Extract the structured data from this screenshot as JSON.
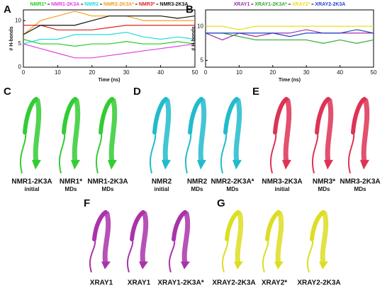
{
  "chart_data": [
    {
      "type": "line",
      "label": "A",
      "xlabel": "Time (ns)",
      "ylabel": "# H-bonds",
      "x": [
        0,
        5,
        10,
        15,
        20,
        25,
        30,
        35,
        40,
        45,
        50
      ],
      "xlim": [
        0,
        50
      ],
      "xticks": [
        0,
        10,
        20,
        30,
        40,
        50
      ],
      "ylim": [
        0,
        12.3
      ],
      "yticks": [
        0,
        5,
        10
      ],
      "series": [
        {
          "name": "NMR1*",
          "color": "#22cc22",
          "values": [
            6,
            5,
            5,
            4.5,
            5,
            5,
            5.5,
            5,
            5,
            5.5,
            5
          ]
        },
        {
          "name": "NMR1-2K3A",
          "color": "#e040e0",
          "values": [
            5,
            4,
            3,
            2,
            2,
            2.5,
            3,
            3.5,
            4,
            4.5,
            5
          ]
        },
        {
          "name": "NMR2",
          "color": "#22dddd",
          "values": [
            5,
            6,
            6,
            7,
            7,
            7,
            7.5,
            6.5,
            6,
            6.5,
            6
          ]
        },
        {
          "name": "NMR2-2K3A*",
          "color": "#f0a020",
          "values": [
            7,
            10,
            11,
            12,
            11,
            11,
            11,
            10,
            10,
            10,
            10
          ]
        },
        {
          "name": "NMR3*",
          "color": "#dd2222",
          "values": [
            9,
            9,
            8,
            8,
            8,
            8.5,
            9,
            9,
            9,
            9,
            9
          ]
        },
        {
          "name": "NMR3-2K3A",
          "color": "#111111",
          "values": [
            7,
            9,
            9,
            9,
            10,
            11,
            11,
            11,
            11,
            10.5,
            11
          ]
        }
      ]
    },
    {
      "type": "line",
      "label": "B",
      "xlabel": "Time (ns)",
      "ylabel": "# H-bonds",
      "x": [
        0,
        5,
        10,
        15,
        20,
        25,
        30,
        35,
        40,
        45,
        50
      ],
      "xlim": [
        0,
        50
      ],
      "xticks": [
        0,
        10,
        20,
        30,
        40,
        50
      ],
      "ylim": [
        4,
        12.4
      ],
      "yticks": [
        5,
        10
      ],
      "series": [
        {
          "name": "XRAY1",
          "color": "#9933aa",
          "values": [
            9,
            8,
            9,
            8.5,
            9,
            9,
            9.5,
            9,
            9,
            9,
            9
          ]
        },
        {
          "name": "XRAY1-2K3A*",
          "color": "#33aa33",
          "values": [
            9,
            9,
            8.5,
            8,
            8,
            8,
            8,
            7.5,
            8,
            7.5,
            8
          ]
        },
        {
          "name": "XRAY2*",
          "color": "#eedd22",
          "values": [
            10,
            10,
            9.5,
            10,
            10,
            10,
            10,
            10,
            10,
            10,
            10
          ]
        },
        {
          "name": "XRAY2-2K3A",
          "color": "#2244cc",
          "values": [
            9,
            9,
            9,
            9,
            9,
            8.5,
            9,
            9,
            9,
            9.5,
            9
          ]
        }
      ]
    }
  ],
  "panels": [
    {
      "label": "C",
      "color": "#33cc33",
      "structures": [
        {
          "name": "NMR1-2K3A",
          "note": "initial"
        },
        {
          "name": "NMR1*",
          "note": "MDs"
        },
        {
          "name": "NMR1-2K3A",
          "note": "MDs"
        }
      ]
    },
    {
      "label": "D",
      "color": "#22bbcc",
      "structures": [
        {
          "name": "NMR2",
          "note": "initial"
        },
        {
          "name": "NMR2",
          "note": "MDs"
        },
        {
          "name": "NMR2-2K3A*",
          "note": "MDs"
        }
      ]
    },
    {
      "label": "E",
      "color": "#dd3355",
      "structures": [
        {
          "name": "NMR3-2K3A",
          "note": "initial"
        },
        {
          "name": "NMR3*",
          "note": "MDs"
        },
        {
          "name": "NMR3-2K3A",
          "note": "MDs"
        }
      ]
    },
    {
      "label": "F",
      "color": "#aa33aa",
      "structures": [
        {
          "name": "XRAY1"
        },
        {
          "name": "XRAY1"
        },
        {
          "name": "XRAY1-2K3A*"
        }
      ]
    },
    {
      "label": "G",
      "color": "#dddd22",
      "structures": [
        {
          "name": "XRAY2-2K3A"
        },
        {
          "name": "XRAY2*"
        },
        {
          "name": "XRAY2-2K3A"
        }
      ]
    }
  ]
}
